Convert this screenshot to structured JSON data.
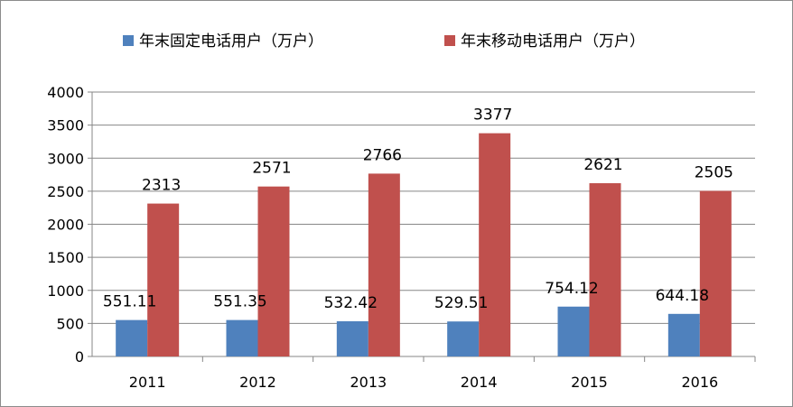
{
  "chart_data": {
    "type": "bar",
    "categories": [
      "2011",
      "2012",
      "2013",
      "2014",
      "2015",
      "2016"
    ],
    "series": [
      {
        "name": "年末固定电话用户（万户）",
        "color": "#4f81bd",
        "values": [
          551.11,
          551.35,
          532.42,
          529.51,
          754.12,
          644.18
        ],
        "labels": [
          "551.11",
          "551.35",
          "532.42",
          "529.51",
          "754.12",
          "644.18"
        ]
      },
      {
        "name": "年末移动电话用户（万户）",
        "color": "#c0504d",
        "values": [
          2313,
          2571,
          2766,
          3377,
          2621,
          2505
        ],
        "labels": [
          "2313",
          "2571",
          "2766",
          "3377",
          "2621",
          "2505"
        ]
      }
    ],
    "ylim": [
      0,
      4000
    ],
    "yticks": [
      "0",
      "500",
      "1000",
      "1500",
      "2000",
      "2500",
      "3000",
      "3500",
      "4000"
    ],
    "grid": true,
    "legend": "top",
    "title": "",
    "xlabel": "",
    "ylabel": ""
  }
}
